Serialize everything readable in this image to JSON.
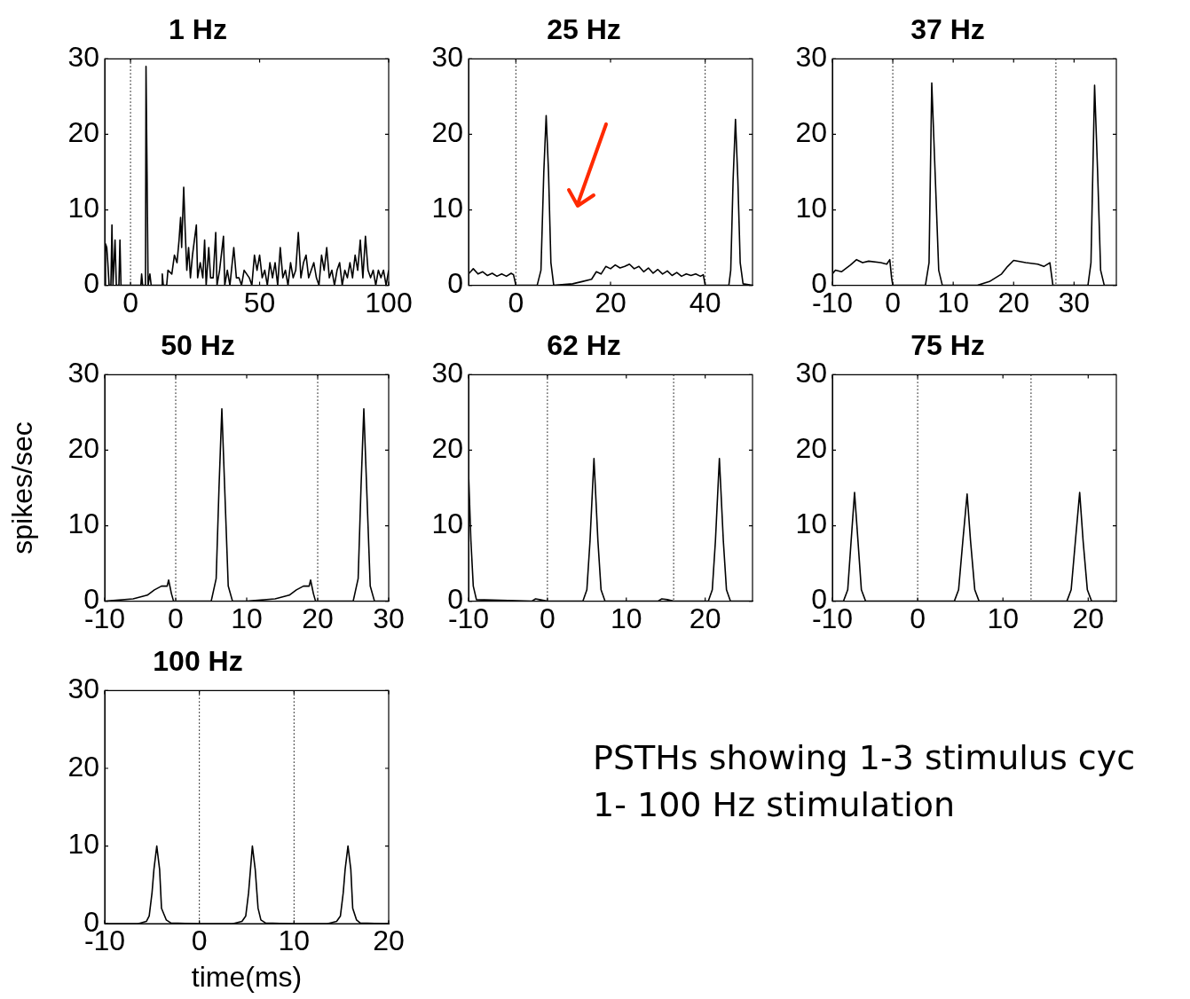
{
  "chart_data": [
    {
      "type": "line",
      "title": "1 Hz",
      "color": "#000000",
      "line_style": "solid",
      "marker": "none",
      "xlim": [
        -10,
        100
      ],
      "xticks": [
        0,
        50,
        100
      ],
      "ylim": [
        0,
        30
      ],
      "yticks": [
        0,
        10,
        20,
        30
      ],
      "ref_lines": [
        {
          "axis": "x",
          "value": 0,
          "line_style": "dotted",
          "color": "#000000"
        }
      ],
      "x": [
        -10,
        -9.7,
        -9.2,
        -8.8,
        -8.3,
        -7.6,
        -7.2,
        -6.8,
        -6,
        -5.5,
        -4.5,
        -4.1,
        -3.7,
        0,
        4,
        4.3,
        4.7,
        5.8,
        6,
        6.4,
        6.8,
        7.5,
        8,
        12,
        12.3,
        12.7,
        14,
        14.5,
        16,
        17,
        18,
        18.8,
        19.4,
        19.8,
        20.6,
        21.2,
        21.8,
        22.5,
        23.2,
        24,
        25.5,
        26,
        27,
        28,
        28.7,
        29.3,
        30.3,
        31,
        32,
        33,
        33.5,
        34.5,
        36,
        36.5,
        37.5,
        38.5,
        40,
        41,
        42,
        43,
        44,
        46,
        47,
        48,
        49,
        50,
        51,
        52,
        53,
        54,
        55,
        56,
        57,
        58,
        59,
        60,
        61,
        62,
        63,
        64,
        65,
        66,
        67,
        68,
        69,
        70,
        71,
        72,
        73,
        74,
        75,
        76,
        77,
        78,
        79,
        80,
        81,
        82,
        83,
        84,
        85,
        86,
        87,
        88,
        89,
        90,
        91,
        92,
        93,
        94,
        95,
        96,
        97,
        98,
        99,
        100
      ],
      "values": [
        0,
        5.5,
        5,
        3,
        0,
        0,
        8,
        0,
        6,
        0,
        0,
        6,
        0,
        0,
        0,
        1.5,
        0,
        0,
        29,
        15,
        0,
        1.5,
        0,
        0,
        1.5,
        0,
        0,
        2,
        1.5,
        4,
        3,
        6,
        9,
        5,
        13,
        7,
        2,
        5,
        1,
        4,
        8,
        1,
        3,
        1,
        6,
        0,
        5,
        1,
        1,
        7,
        0,
        2,
        6.5,
        0,
        2,
        0,
        5,
        1,
        1,
        0,
        2,
        1,
        0,
        4,
        2,
        4,
        1,
        2,
        0,
        3,
        1,
        3,
        0,
        5,
        1,
        2,
        0,
        3,
        1,
        2,
        7,
        1,
        3,
        4,
        1,
        2,
        3,
        1,
        0,
        4,
        2,
        5,
        1,
        2,
        0,
        2,
        3,
        0,
        2,
        1,
        3,
        1,
        4,
        2,
        6,
        1,
        6.5,
        2,
        1,
        2,
        0,
        2,
        1,
        2,
        0,
        2
      ]
    },
    {
      "type": "line",
      "title": "25 Hz",
      "color": "#000000",
      "line_style": "solid",
      "marker": "none",
      "xlim": [
        -10,
        50
      ],
      "xticks": [
        0,
        20,
        40
      ],
      "ylim": [
        0,
        30
      ],
      "yticks": [
        0,
        10,
        20,
        30
      ],
      "ref_lines": [
        {
          "axis": "x",
          "value": 0,
          "line_style": "dotted",
          "color": "#000000"
        },
        {
          "axis": "x",
          "value": 40,
          "line_style": "dotted",
          "color": "#000000"
        }
      ],
      "x": [
        -10,
        -9,
        -8,
        -7,
        -6,
        -5,
        -4,
        -3,
        -2,
        -1,
        -0.5,
        0,
        4.5,
        5.3,
        5.9,
        6.4,
        6.9,
        7.4,
        8,
        12,
        14,
        16,
        17,
        18,
        19,
        20,
        21,
        22,
        23,
        24,
        25,
        26,
        27,
        28,
        29,
        30,
        31,
        32,
        33,
        34,
        35,
        36,
        37,
        38,
        39,
        39.6,
        40,
        45,
        45.4,
        45.9,
        46.4,
        46.9,
        47.4,
        48,
        50
      ],
      "values": [
        1.5,
        2.2,
        1.5,
        1.8,
        1.3,
        1.6,
        1.2,
        1.5,
        1.2,
        1.6,
        1.4,
        0,
        0,
        2,
        15,
        22.5,
        15,
        3,
        0,
        0.2,
        0.5,
        0.8,
        1.8,
        1.5,
        2.5,
        2.2,
        2.7,
        2.3,
        2.5,
        2.8,
        2.2,
        2.5,
        1.8,
        2.3,
        1.6,
        2.1,
        1.5,
        1.9,
        1.3,
        1.7,
        1.2,
        1.5,
        1.3,
        1.5,
        1.2,
        1.4,
        0,
        0,
        2,
        14,
        22,
        14,
        3,
        0.2,
        0
      ]
    },
    {
      "type": "line",
      "title": "37 Hz",
      "color": "#000000",
      "line_style": "solid",
      "marker": "none",
      "xlim": [
        -10,
        37
      ],
      "xticks": [
        -10,
        0,
        10,
        20,
        30
      ],
      "ylim": [
        0,
        30
      ],
      "yticks": [
        0,
        10,
        20,
        30
      ],
      "ref_lines": [
        {
          "axis": "x",
          "value": 0,
          "line_style": "dotted",
          "color": "#000000"
        },
        {
          "axis": "x",
          "value": 27,
          "line_style": "dotted",
          "color": "#000000"
        }
      ],
      "x": [
        -10,
        -9.5,
        -8.5,
        -7,
        -6,
        -5,
        -4,
        -2,
        -1,
        -0.5,
        -0.2,
        0,
        5.4,
        6,
        6.45,
        7,
        7.6,
        8.2,
        14,
        16,
        18,
        19,
        20,
        22,
        24,
        25,
        26,
        26.5,
        27,
        32.3,
        32.8,
        33.4,
        33.9,
        34.4,
        35,
        37
      ],
      "values": [
        1.5,
        2,
        1.8,
        2.7,
        3.4,
        3,
        3.2,
        3,
        2.8,
        3.4,
        1,
        0,
        0,
        3,
        26.8,
        15,
        2,
        0,
        0,
        0.5,
        1.5,
        2.5,
        3.3,
        3,
        2.8,
        2.5,
        3,
        0,
        0,
        0,
        3,
        26.5,
        15,
        2,
        0,
        0
      ]
    },
    {
      "type": "line",
      "title": "50 Hz",
      "ylabel": "spikes/sec",
      "color": "#000000",
      "line_style": "solid",
      "marker": "none",
      "xlim": [
        -10,
        30
      ],
      "xticks": [
        -10,
        0,
        10,
        20,
        30
      ],
      "ylim": [
        0,
        30
      ],
      "yticks": [
        0,
        10,
        20,
        30
      ],
      "ref_lines": [
        {
          "axis": "x",
          "value": 0,
          "line_style": "dotted",
          "color": "#000000"
        },
        {
          "axis": "x",
          "value": 20,
          "line_style": "dotted",
          "color": "#000000"
        }
      ],
      "x": [
        -10,
        -6,
        -4,
        -3,
        -2,
        -1.2,
        -1,
        -0.6,
        -0.3,
        5,
        5.7,
        6.1,
        6.5,
        6.9,
        7.4,
        8,
        10,
        14,
        16,
        17,
        18,
        18.8,
        19,
        19.4,
        19.7,
        25,
        25.7,
        26.1,
        26.5,
        26.9,
        27.4,
        28,
        30
      ],
      "values": [
        0,
        0.3,
        0.8,
        1.5,
        2,
        2,
        2.8,
        1,
        0,
        0,
        3,
        15,
        25.5,
        15,
        2,
        0,
        0,
        0.3,
        0.8,
        1.5,
        2,
        2,
        2.8,
        1,
        0,
        0,
        3,
        15,
        25.5,
        15,
        2,
        0,
        0
      ]
    },
    {
      "type": "line",
      "title": "62 Hz",
      "color": "#000000",
      "line_style": "solid",
      "marker": "none",
      "xlim": [
        -10,
        26
      ],
      "xticks": [
        -10,
        0,
        10,
        20
      ],
      "ylim": [
        0,
        30
      ],
      "yticks": [
        0,
        10,
        20,
        30
      ],
      "ref_lines": [
        {
          "axis": "x",
          "value": 0,
          "line_style": "dotted",
          "color": "#000000"
        },
        {
          "axis": "x",
          "value": 16,
          "line_style": "dotted",
          "color": "#000000"
        }
      ],
      "x": [
        -10,
        -9.7,
        -9.4,
        -9,
        -2,
        -1.5,
        -1,
        0,
        4.5,
        5,
        5.4,
        5.9,
        6.4,
        6.8,
        7.3,
        14,
        14.5,
        15.2,
        16,
        20.4,
        20.9,
        21.3,
        21.8,
        22.3,
        22.7,
        23.2,
        26
      ],
      "values": [
        17,
        8,
        2,
        0.2,
        0,
        0.3,
        0.2,
        0,
        0,
        1.5,
        8,
        18.9,
        8,
        1.5,
        0,
        0,
        0.3,
        0.2,
        0,
        0,
        1.5,
        8,
        18.9,
        8,
        1.5,
        0,
        0
      ]
    },
    {
      "type": "line",
      "title": "75 Hz",
      "color": "#000000",
      "line_style": "solid",
      "marker": "none",
      "xlim": [
        -10,
        23.3
      ],
      "xticks": [
        -10,
        0,
        10,
        20
      ],
      "ylim": [
        0,
        30
      ],
      "yticks": [
        0,
        10,
        20,
        30
      ],
      "ref_lines": [
        {
          "axis": "x",
          "value": 0,
          "line_style": "dotted",
          "color": "#000000"
        },
        {
          "axis": "x",
          "value": 13.3,
          "line_style": "dotted",
          "color": "#000000"
        }
      ],
      "x": [
        -10,
        -8.7,
        -8.2,
        -7.8,
        -7.4,
        -7,
        -6.6,
        -6.1,
        4.3,
        4.8,
        5.3,
        5.8,
        6.2,
        6.7,
        7.2,
        17.5,
        18,
        18.5,
        19,
        19.4,
        19.9,
        20.4,
        23.3
      ],
      "values": [
        0,
        0,
        1.5,
        8,
        14.4,
        8,
        1.5,
        0,
        0,
        1.5,
        8,
        14.2,
        8,
        1.5,
        0,
        0,
        1.5,
        8,
        14.4,
        8,
        1.5,
        0,
        0
      ]
    },
    {
      "type": "line",
      "title": "100 Hz",
      "xlabel": "time(ms)",
      "color": "#000000",
      "line_style": "solid",
      "marker": "none",
      "xlim": [
        -10,
        20
      ],
      "xticks": [
        -10,
        0,
        10,
        20
      ],
      "ylim": [
        0,
        30
      ],
      "yticks": [
        0,
        10,
        20,
        30
      ],
      "ref_lines": [
        {
          "axis": "x",
          "value": 0,
          "line_style": "dotted",
          "color": "#000000"
        },
        {
          "axis": "x",
          "value": 10,
          "line_style": "dotted",
          "color": "#000000"
        }
      ],
      "x": [
        -10,
        -6.5,
        -5.6,
        -5.3,
        -5,
        -4.8,
        -4.5,
        -4.2,
        -4,
        -3.5,
        -3,
        0,
        3.5,
        4.5,
        4.9,
        5.2,
        5.4,
        5.6,
        5.9,
        6.2,
        6.5,
        7,
        10,
        13.5,
        14.5,
        14.9,
        15.2,
        15.4,
        15.7,
        16,
        16.2,
        16.6,
        17,
        20
      ],
      "values": [
        0,
        0,
        0.3,
        1,
        4,
        7,
        10,
        7,
        2,
        0.5,
        0.1,
        0,
        0,
        0.3,
        1,
        4,
        7,
        10,
        7,
        2,
        0.5,
        0.1,
        0,
        0,
        0.3,
        1,
        4,
        7,
        10,
        7,
        2,
        0.5,
        0.1,
        0
      ]
    },
    {
      "type": "other",
      "annotations": [
        "PSTHs showing 1-3 stimulus cyc",
        "1- 100 Hz stimulation"
      ]
    }
  ]
}
